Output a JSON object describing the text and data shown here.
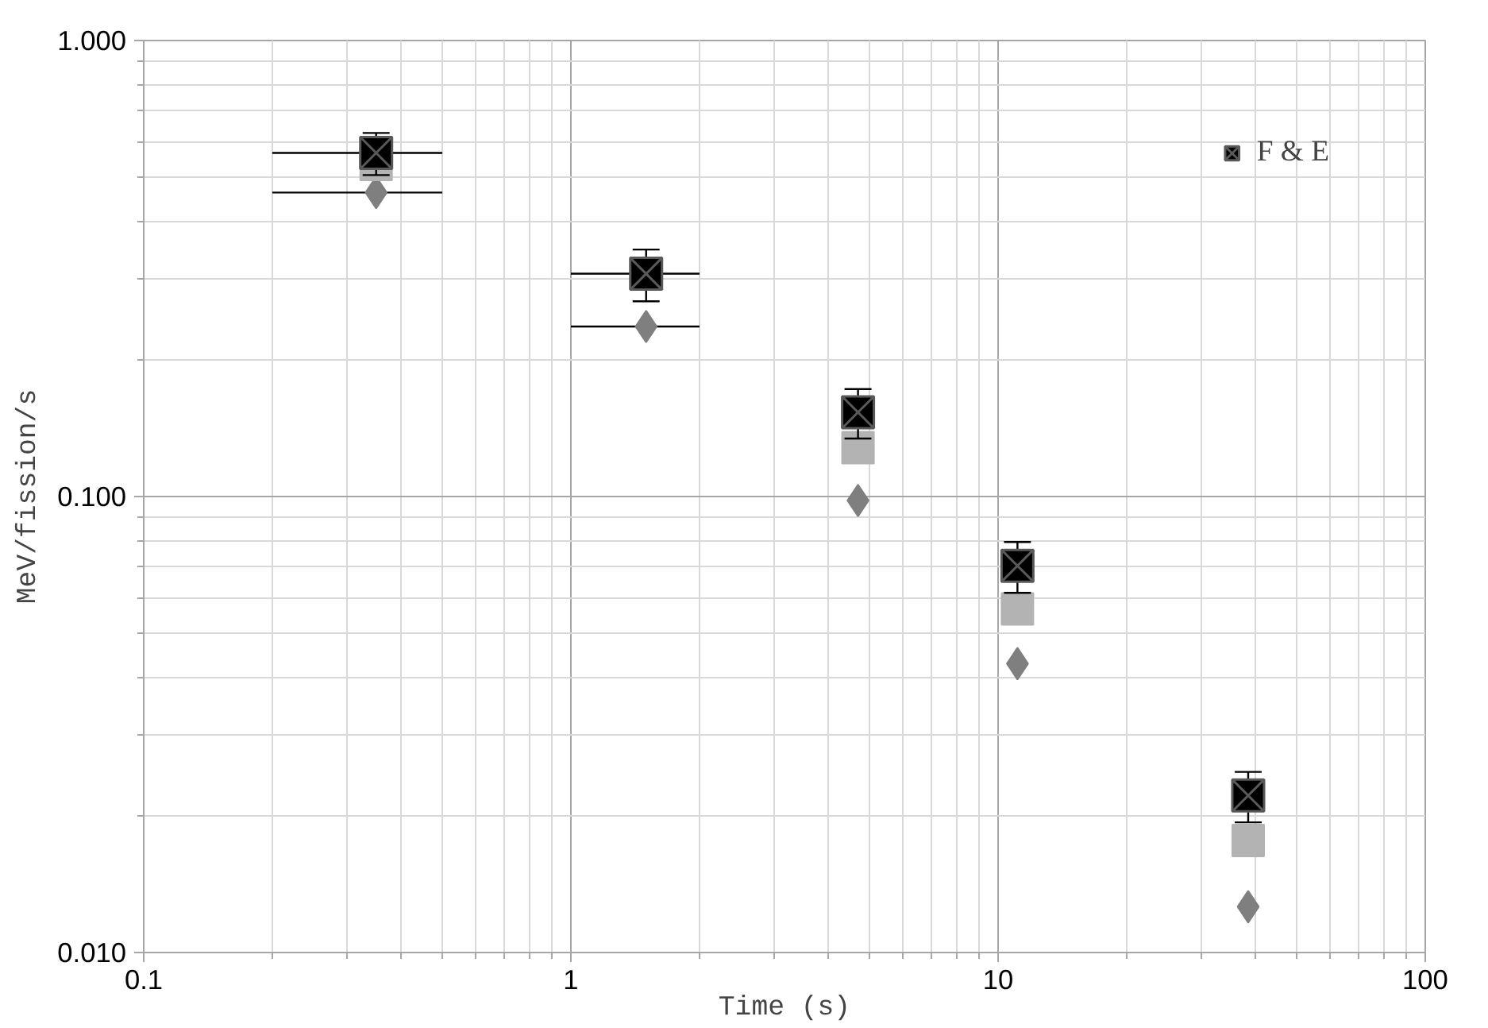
{
  "chart_data": {
    "type": "scatter",
    "xlabel": "Time (s)",
    "ylabel": "MeV/fission/s",
    "x": [
      0.35,
      1.5,
      4.7,
      11.1,
      38.5
    ],
    "log": "xy",
    "xlim": [
      0.1,
      100
    ],
    "ylim": [
      0.01,
      1
    ],
    "xticks": [
      0.1,
      1,
      10,
      100
    ],
    "yticks": [
      {
        "value": 0.01,
        "label": "0.010"
      },
      {
        "value": 0.1,
        "label": "0.100"
      },
      {
        "value": 1,
        "label": "1.000"
      }
    ],
    "grid": true,
    "legend": "top right",
    "series": [
      {
        "color": "#7f7f7f",
        "marker": "diamond",
        "values": [
          0.464,
          0.236,
          0.098,
          0.043,
          0.0126
        ],
        "xerrors": [
          [
            0.2,
            0.5
          ],
          [
            1,
            2
          ],
          null,
          null,
          null
        ]
      },
      {
        "color": "#b3b3b3",
        "marker": "square",
        "values": [
          0.535,
          null,
          0.128,
          0.0567,
          0.0176
        ]
      },
      {
        "name": "F & E",
        "color": "#000000",
        "marker": "cross",
        "values": [
          0.567,
          0.308,
          0.153,
          0.0705,
          0.0221
        ],
        "errors": [
          0.06,
          0.04,
          0.019,
          0.009,
          0.0028
        ],
        "xerrors": [
          [
            0.2,
            0.5
          ],
          [
            1,
            2
          ],
          null,
          null,
          null
        ]
      }
    ]
  }
}
